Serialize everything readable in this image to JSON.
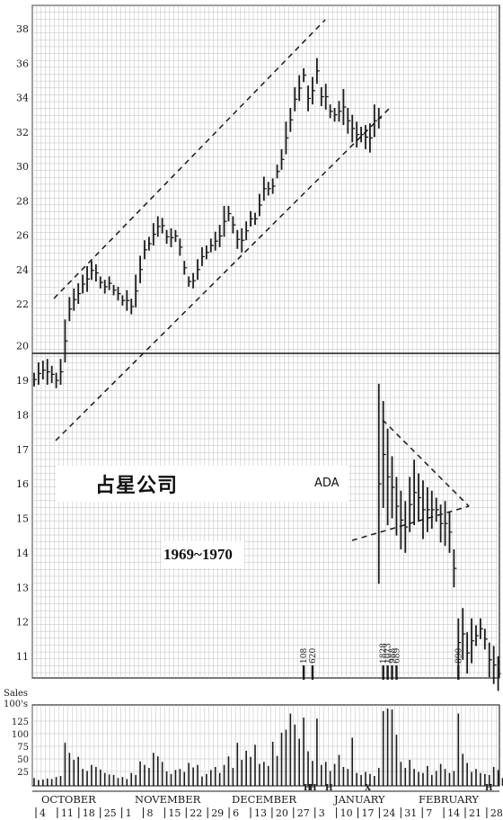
{
  "title": "占星公司",
  "ticker": "ADA",
  "period": "1969~1970",
  "sales_label": "Sales",
  "sales_unit": "100's",
  "colors": {
    "ink": "#1a1a1a",
    "grid": "#bdbdbd",
    "background": "#ffffff"
  },
  "chart_data": [
    {
      "type": "bar",
      "subtype": "ohlc-price-bars",
      "title": "",
      "xlabel": "",
      "ylabel": "",
      "upper_ylim": [
        20,
        39
      ],
      "lower_ylim": [
        10,
        20
      ],
      "upper_yticks": [
        22,
        24,
        26,
        28,
        30,
        32,
        34,
        36,
        38
      ],
      "lower_yticks": [
        11,
        12,
        13,
        14,
        15,
        16,
        17,
        18,
        19,
        20
      ],
      "months": [
        "OCTOBER",
        "NOVEMBER",
        "DECEMBER",
        "JANUARY",
        "FEBRUARY"
      ],
      "week_ticks": [
        "4",
        "11",
        "18",
        "25",
        "1",
        "8",
        "15",
        "22",
        "29",
        "6",
        "13",
        "20",
        "27",
        "3",
        "10",
        "17",
        "24",
        "31",
        "7",
        "14",
        "21",
        "28"
      ],
      "holiday_marks": [
        "H",
        "H",
        "H",
        "X",
        "H"
      ],
      "series": [
        {
          "panel": "upper",
          "days": [
            [
              1,
              17.2,
              18.0
            ],
            [
              2,
              17.3,
              18.6
            ],
            [
              3,
              17.6,
              18.7
            ],
            [
              4,
              17.3,
              18.8
            ],
            [
              5,
              17.4,
              18.4
            ],
            [
              6,
              17.1,
              18.0
            ],
            [
              7,
              17.3,
              18.8
            ],
            [
              8,
              18.6,
              21.1
            ],
            [
              9,
              21.0,
              22.4
            ],
            [
              10,
              21.6,
              22.9
            ],
            [
              11,
              22.0,
              23.2
            ],
            [
              12,
              22.6,
              23.7
            ],
            [
              13,
              22.7,
              24.2
            ],
            [
              14,
              23.4,
              24.5
            ],
            [
              15,
              23.3,
              24.3
            ],
            [
              16,
              22.9,
              23.6
            ],
            [
              17,
              22.6,
              23.4
            ],
            [
              18,
              22.8,
              23.6
            ],
            [
              19,
              22.5,
              23.1
            ],
            [
              20,
              22.2,
              23.0
            ],
            [
              21,
              21.9,
              22.5
            ],
            [
              22,
              21.6,
              22.8
            ],
            [
              23,
              21.4,
              22.3
            ],
            [
              24,
              21.8,
              23.7
            ],
            [
              25,
              23.2,
              24.8
            ],
            [
              26,
              24.6,
              25.7
            ],
            [
              27,
              25.1,
              25.9
            ],
            [
              28,
              25.4,
              26.7
            ],
            [
              29,
              25.9,
              27.1
            ],
            [
              30,
              26.1,
              27.0
            ],
            [
              31,
              25.5,
              26.3
            ],
            [
              32,
              25.3,
              26.4
            ],
            [
              33,
              25.6,
              26.3
            ],
            [
              34,
              24.8,
              25.8
            ],
            [
              35,
              23.7,
              24.5
            ],
            [
              36,
              23.0,
              23.6
            ],
            [
              37,
              22.9,
              23.8
            ],
            [
              38,
              23.4,
              24.6
            ],
            [
              39,
              24.2,
              25.3
            ],
            [
              40,
              24.6,
              25.4
            ],
            [
              41,
              25.0,
              25.8
            ],
            [
              42,
              25.1,
              26.2
            ],
            [
              43,
              25.3,
              26.6
            ],
            [
              44,
              25.9,
              27.7
            ],
            [
              45,
              26.8,
              27.7
            ],
            [
              46,
              26.1,
              27.1
            ],
            [
              47,
              25.2,
              26.3
            ],
            [
              48,
              25.0,
              26.4
            ],
            [
              49,
              25.7,
              26.8
            ],
            [
              50,
              26.5,
              27.4
            ],
            [
              51,
              26.6,
              27.3
            ],
            [
              52,
              27.1,
              28.4
            ],
            [
              53,
              28.0,
              29.4
            ],
            [
              54,
              28.3,
              29.1
            ],
            [
              55,
              28.4,
              29.3
            ],
            [
              56,
              29.3,
              30.1
            ],
            [
              57,
              29.8,
              31.0
            ],
            [
              58,
              30.7,
              32.6
            ],
            [
              59,
              32.0,
              33.4
            ],
            [
              60,
              33.2,
              34.6
            ],
            [
              61,
              33.8,
              35.3
            ],
            [
              62,
              34.9,
              35.7
            ],
            [
              63,
              33.2,
              34.7
            ],
            [
              64,
              33.6,
              35.2
            ],
            [
              65,
              34.8,
              36.3
            ],
            [
              66,
              33.5,
              34.6
            ],
            [
              67,
              33.3,
              34.8
            ],
            [
              68,
              32.8,
              33.6
            ],
            [
              69,
              32.6,
              33.4
            ],
            [
              70,
              32.6,
              33.8
            ],
            [
              71,
              32.4,
              34.5
            ],
            [
              72,
              31.9,
              33.4
            ],
            [
              73,
              31.4,
              33.0
            ],
            [
              74,
              31.1,
              32.6
            ],
            [
              75,
              31.4,
              32.3
            ],
            [
              76,
              31.0,
              32.4
            ],
            [
              77,
              30.8,
              32.5
            ],
            [
              78,
              31.7,
              33.6
            ],
            [
              79,
              32.2,
              33.4
            ]
          ]
        },
        {
          "panel": "lower",
          "days": [
            [
              79,
              13.1,
              18.9
            ],
            [
              80,
              15.3,
              18.4
            ],
            [
              81,
              14.8,
              17.6
            ],
            [
              82,
              15.0,
              16.8
            ],
            [
              83,
              14.5,
              16.2
            ],
            [
              84,
              14.1,
              15.8
            ],
            [
              85,
              14.0,
              15.5
            ],
            [
              86,
              14.6,
              16.2
            ],
            [
              87,
              14.8,
              16.7
            ],
            [
              88,
              14.9,
              16.3
            ],
            [
              89,
              14.4,
              16.1
            ],
            [
              90,
              14.6,
              15.9
            ],
            [
              91,
              14.7,
              15.8
            ],
            [
              92,
              14.9,
              15.6
            ],
            [
              93,
              14.3,
              15.4
            ],
            [
              94,
              14.2,
              15.5
            ],
            [
              95,
              14.0,
              15.2
            ],
            [
              96,
              13.0,
              14.1
            ],
            [
              97,
              10.7,
              12.1
            ],
            [
              98,
              10.9,
              12.4
            ],
            [
              99,
              10.5,
              11.7
            ],
            [
              100,
              10.8,
              12.1
            ],
            [
              101,
              11.3,
              11.9
            ],
            [
              102,
              11.5,
              12.1
            ],
            [
              103,
              11.2,
              11.8
            ],
            [
              104,
              10.4,
              11.4
            ],
            [
              105,
              10.2,
              11.3
            ],
            [
              106,
              10.0,
              11.0
            ]
          ]
        }
      ],
      "volume": {
        "ylim": [
          0,
          150
        ],
        "yticks": [
          25,
          50,
          75,
          100,
          125
        ],
        "days": [
          12,
          8,
          9,
          11,
          10,
          14,
          16,
          82,
          62,
          48,
          54,
          30,
          26,
          38,
          34,
          29,
          22,
          19,
          18,
          12,
          14,
          10,
          22,
          18,
          45,
          38,
          32,
          62,
          55,
          44,
          25,
          20,
          28,
          30,
          24,
          42,
          33,
          38,
          15,
          20,
          28,
          34,
          22,
          38,
          55,
          32,
          82,
          48,
          66,
          54,
          78,
          40,
          44,
          36,
          84,
          56,
          102,
          108,
          140,
          118,
          90,
          132,
          65,
          46,
          130,
          38,
          44,
          26,
          40,
          58,
          34,
          30,
          92,
          22,
          18,
          24,
          20,
          16,
          32,
          145,
          150,
          148,
          98,
          44,
          32,
          48,
          30,
          24,
          22,
          36,
          18,
          26,
          40,
          30,
          22,
          26,
          140,
          60,
          42,
          24,
          30,
          22,
          20,
          18,
          34,
          28,
          12
        ],
        "annotations": [
          {
            "day": 62,
            "value": "108"
          },
          {
            "day": 64,
            "value": "620"
          },
          {
            "day": 80,
            "value": "1828"
          },
          {
            "day": 81,
            "value": "1073"
          },
          {
            "day": 82,
            "value": "988"
          },
          {
            "day": 83,
            "value": "689"
          },
          {
            "day": 97,
            "value": "890"
          }
        ]
      }
    }
  ]
}
